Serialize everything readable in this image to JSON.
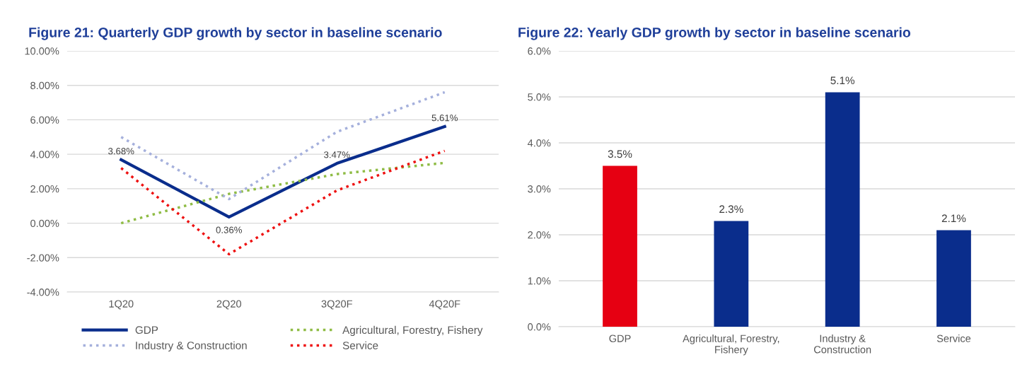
{
  "chart_data": [
    {
      "type": "line",
      "title": "Figure 21: Quarterly GDP growth by sector in baseline scenario",
      "categories": [
        "1Q20",
        "2Q20",
        "3Q20F",
        "4Q20F"
      ],
      "series": [
        {
          "name": "GDP",
          "color": "#0a2d8c",
          "values": [
            3.68,
            0.36,
            3.47,
            5.61
          ],
          "line_style": "solid",
          "value_labels": [
            "3.68%",
            "0.36%",
            "3.47%",
            "5.61%"
          ]
        },
        {
          "name": "Agricultural, Forestry, Fishery",
          "color": "#8fbc45",
          "values": [
            0.0,
            1.7,
            2.85,
            3.5
          ],
          "line_style": "dotted"
        },
        {
          "name": "Industry & Construction",
          "color": "#a5b0dc",
          "values": [
            5.0,
            1.4,
            5.3,
            7.6
          ],
          "line_style": "dotted"
        },
        {
          "name": "Service",
          "color": "#ee1111",
          "values": [
            3.2,
            -1.8,
            1.9,
            4.2
          ],
          "line_style": "dotted"
        }
      ],
      "ylim": [
        -4,
        10
      ],
      "yticks": [
        {
          "value": -4,
          "label": "-4.00%"
        },
        {
          "value": -2,
          "label": "-2.00%"
        },
        {
          "value": 0,
          "label": "0.00%"
        },
        {
          "value": 2,
          "label": "2.00%"
        },
        {
          "value": 4,
          "label": "4.00%"
        },
        {
          "value": 6,
          "label": "6.00%"
        },
        {
          "value": 8,
          "label": "8.00%"
        },
        {
          "value": 10,
          "label": "10.00%"
        }
      ],
      "grid": "y",
      "legend": "bottom",
      "marker": "none"
    },
    {
      "type": "bar",
      "title": "Figure 22: Yearly GDP growth by sector in baseline scenario",
      "categories": [
        "GDP",
        "Agricultural, Forestry,\nFishery",
        "Industry &\nConstruction",
        "Service"
      ],
      "values": [
        3.5,
        2.3,
        5.1,
        2.1
      ],
      "colors": [
        "#e60012",
        "#0a2d8c",
        "#0a2d8c",
        "#0a2d8c"
      ],
      "value_labels": [
        "3.5%",
        "2.3%",
        "5.1%",
        "2.1%"
      ],
      "ylim": [
        0,
        6
      ],
      "yticks": [
        {
          "value": 0,
          "label": "0.0%"
        },
        {
          "value": 1,
          "label": "1.0%"
        },
        {
          "value": 2,
          "label": "2.0%"
        },
        {
          "value": 3,
          "label": "3.0%"
        },
        {
          "value": 4,
          "label": "4.0%"
        },
        {
          "value": 5,
          "label": "5.0%"
        },
        {
          "value": 6,
          "label": "6.0%"
        }
      ],
      "grid": "y"
    }
  ]
}
